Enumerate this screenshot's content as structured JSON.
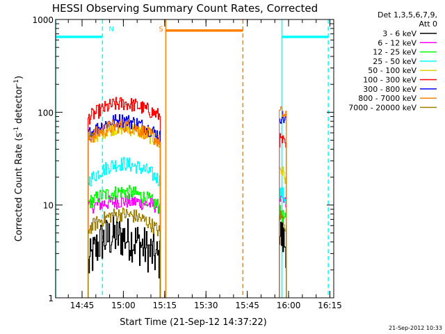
{
  "chart_data": {
    "type": "line",
    "title": "HESSI Observing Summary Count Rates, Corrected",
    "xlabel": "Start Time (21-Sep-12 14:37:22)",
    "ylabel_main": "Corrected Count Rate (s",
    "ylabel_sup1": "-1",
    "ylabel_mid": " detector",
    "ylabel_sup2": "-1",
    "ylabel_end": ")",
    "yscale": "log",
    "ylim": [
      1,
      1000
    ],
    "xlim_minutes": [
      -2,
      99
    ],
    "x_ticks": [
      {
        "label": "14:45",
        "t": 7.6
      },
      {
        "label": "15:00",
        "t": 22.6
      },
      {
        "label": "15:15",
        "t": 37.6
      },
      {
        "label": "15:30",
        "t": 52.6
      },
      {
        "label": "15:45",
        "t": 67.6
      },
      {
        "label": "16:00",
        "t": 82.6
      },
      {
        "label": "16:15",
        "t": 97.6
      }
    ],
    "y_ticks": [
      {
        "label": "1",
        "v": 1
      },
      {
        "label": "10",
        "v": 10
      },
      {
        "label": "100",
        "v": 100
      },
      {
        "label": "1000",
        "v": 1000
      }
    ],
    "legend_header": [
      "Det 1,3,5,6,7,9,",
      "Att 0"
    ],
    "series": [
      {
        "name": "3 - 6 keV",
        "color": "#000000",
        "seg1": [
          2.2,
          4.0,
          4.6,
          4.5,
          4.0,
          3.2,
          2.5
        ],
        "seg2": [
          5.0,
          4.2,
          3.5
        ]
      },
      {
        "name": "6 - 12 keV",
        "color": "#ff00ff",
        "seg1": [
          9.5,
          10.2,
          10.8,
          11.0,
          10.8,
          10.3,
          9.5
        ],
        "seg2": [
          12.0,
          11.0,
          10.0
        ]
      },
      {
        "name": "12 - 25 keV",
        "color": "#00ff00",
        "seg1": [
          10.5,
          12.5,
          13.5,
          14.0,
          13.2,
          11.5,
          9.5
        ],
        "seg2": [
          8.5,
          7.5,
          6.5
        ]
      },
      {
        "name": "25 - 50 keV",
        "color": "#00ffff",
        "seg1": [
          18.0,
          23.0,
          27.0,
          28.0,
          26.0,
          23.0,
          18.0
        ],
        "seg2": [
          14.0,
          13.0,
          11.0
        ]
      },
      {
        "name": "50 - 100 keV",
        "color": "#e0d000",
        "seg1": [
          50.0,
          60.0,
          67.0,
          68.0,
          64.0,
          56.0,
          45.0
        ],
        "seg2": [
          26.0,
          22.0,
          18.0
        ]
      },
      {
        "name": "100 - 300 keV",
        "color": "#ff0000",
        "seg1": [
          87.0,
          105.0,
          120.0,
          125.0,
          118.0,
          105.0,
          90.0
        ],
        "seg2": [
          50.0,
          48.0,
          40.0
        ]
      },
      {
        "name": "300 - 800 keV",
        "color": "#0000ff",
        "seg1": [
          58.0,
          70.0,
          80.0,
          82.0,
          76.0,
          66.0,
          55.0
        ],
        "seg2": [
          92.0,
          88.0,
          80.0
        ]
      },
      {
        "name": "800 - 7000 keV",
        "color": "#ff8000",
        "seg1": [
          52.0,
          62.0,
          70.0,
          72.0,
          67.0,
          58.0,
          47.0
        ],
        "seg2": [
          100.0,
          95.0,
          85.0
        ]
      },
      {
        "name": "7000 - 20000 keV",
        "color": "#a08000",
        "seg1": [
          5.5,
          6.8,
          7.8,
          8.0,
          7.5,
          6.5,
          5.0
        ],
        "seg2": [
          8.0,
          7.0,
          5.5
        ]
      }
    ],
    "segment_times": {
      "seg1": [
        9.8,
        36.0
      ],
      "seg2": [
        79.2,
        81.8
      ]
    },
    "markers": [
      {
        "label": "N",
        "color": "#00ffff",
        "type": "night",
        "start": 15.0,
        "end": 80.2
      },
      {
        "label": "S",
        "color": "#ff8000",
        "type": "saa",
        "start": 38.0,
        "end": 66.0
      }
    ],
    "marker_bars": [
      {
        "color": "#00ffff",
        "from": -2,
        "to": 15.0,
        "y": 650
      },
      {
        "color": "#ff8000",
        "from": 38.0,
        "to": 66.0,
        "y": 760
      },
      {
        "color": "#00ffff",
        "from": 80.2,
        "to": 97.0,
        "y": 650
      }
    ],
    "marker_lines": [
      {
        "color": "#00ffff",
        "t": -2.0,
        "style": "solid"
      },
      {
        "color": "#00ffff",
        "t": 15.0,
        "style": "dashed"
      },
      {
        "color": "#ff8000",
        "t": 38.0,
        "style": "solid"
      },
      {
        "color": "#ff8000",
        "t": 66.0,
        "style": "dashed"
      },
      {
        "color": "#00ffff",
        "t": 80.2,
        "style": "solid"
      },
      {
        "color": "#00ffff",
        "t": 97.0,
        "style": "dashed"
      }
    ],
    "footer_date": "21-Sep-2012 10:33"
  }
}
